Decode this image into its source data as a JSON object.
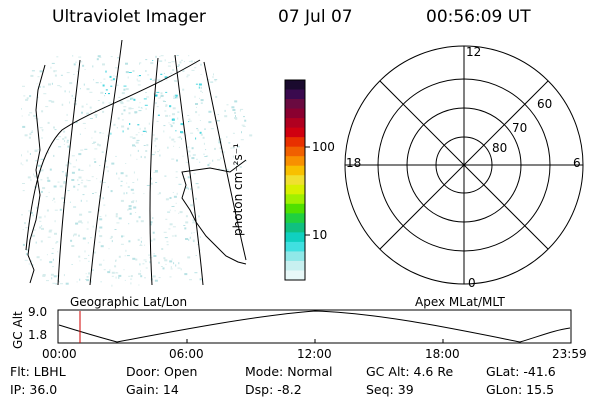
{
  "header": {
    "title": "Ultraviolet Imager",
    "date": "07 Jul 07",
    "time": "00:56:09 UT"
  },
  "colorbar": {
    "label": "photon cm⁻²s⁻¹",
    "ticks": [
      "100",
      "10"
    ],
    "colors": [
      "#1a0a2e",
      "#3a0a4e",
      "#6a0a40",
      "#8a0030",
      "#b00020",
      "#d00010",
      "#e83000",
      "#f06000",
      "#f89000",
      "#f8c000",
      "#f0e030",
      "#d8f000",
      "#a0f000",
      "#50e000",
      "#20d040",
      "#10c080",
      "#10d0c0",
      "#40e0e0",
      "#90e8e8",
      "#c8f0f0",
      "#e8f8f8"
    ]
  },
  "polar": {
    "labels": {
      "top": "12",
      "bottom": "0",
      "left": "18",
      "right": "6"
    },
    "rings": [
      "60",
      "70",
      "80"
    ]
  },
  "panel_labels": {
    "geo": "Geographic Lat/Lon",
    "apex": "Apex MLat/MLT"
  },
  "altitude_plot": {
    "axis_title": "GC Alt",
    "y_top": "9.0",
    "y_bottom": "1.8",
    "x_ticks": [
      "00:00",
      "06:00",
      "12:00",
      "18:00",
      "23:59"
    ]
  },
  "info": {
    "flt": "Flt: LBHL",
    "door": "Door: Open",
    "mode": "Mode: Normal",
    "gcalt": "GC Alt: 4.6 Re",
    "glat": "GLat: -41.6",
    "ip": "IP: 36.0",
    "gain": "Gain: 14",
    "dsp": "Dsp:    -8.2",
    "seq": "Seq: 39",
    "glon": "GLon:  15.5"
  }
}
